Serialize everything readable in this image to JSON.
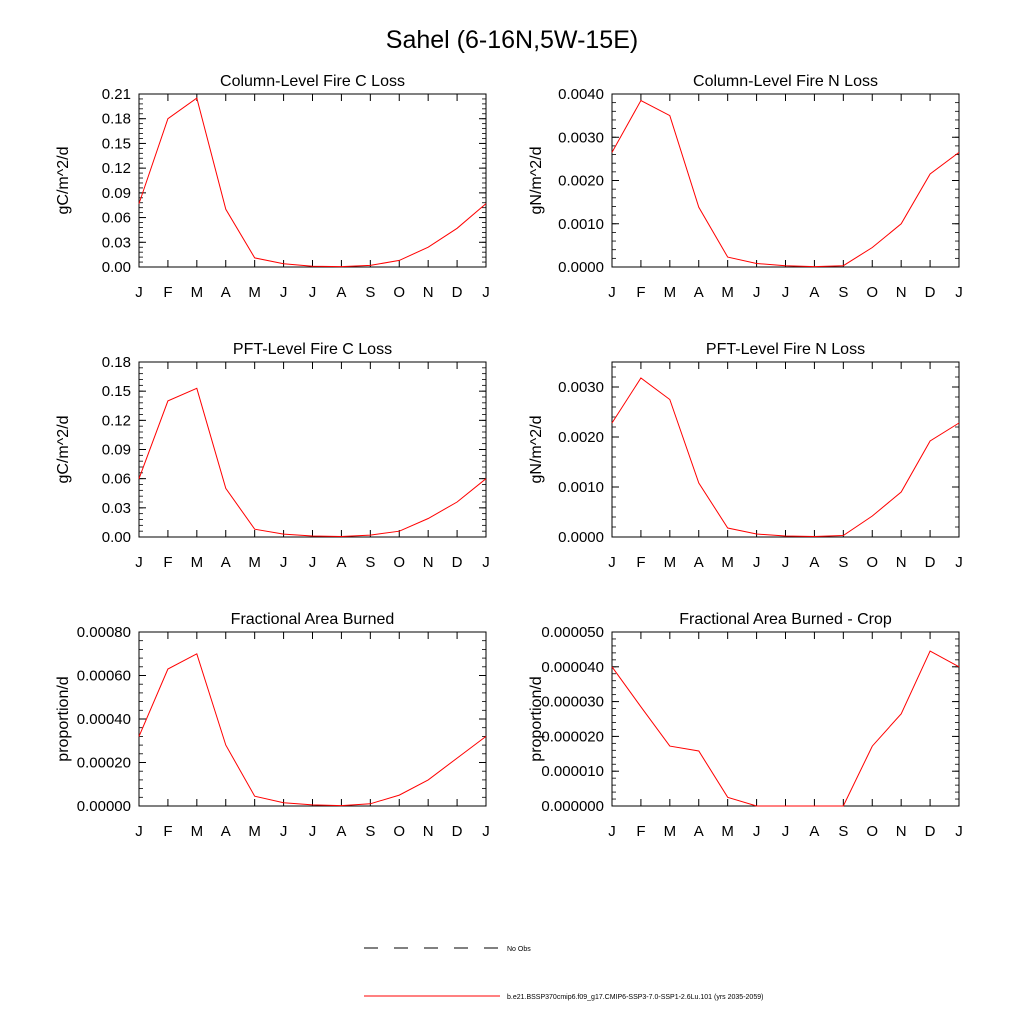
{
  "figure": {
    "title": "Sahel (6-16N,5W-15E)"
  },
  "colors": {
    "series": "#ff0000",
    "axis": "#000000",
    "legend_dash": "#000000"
  },
  "legend": {
    "entries": [
      {
        "label": "No Obs",
        "style": "dashed",
        "color": "#000000"
      },
      {
        "label": "b.e21.BSSP370cmip6.f09_g17.CMIP6-SSP3-7.0-SSP1-2.6Lu.101 (yrs 2035-2059)",
        "style": "solid",
        "color": "#ff0000"
      }
    ]
  },
  "chart_data": [
    {
      "type": "line",
      "title": "Column-Level Fire C Loss",
      "ylabel": "gC/m^2/d",
      "categories": [
        "J",
        "F",
        "M",
        "A",
        "M",
        "J",
        "J",
        "A",
        "S",
        "O",
        "N",
        "D",
        "J"
      ],
      "ylim": [
        0,
        0.21
      ],
      "yticks": [
        "0.00",
        "0.03",
        "0.06",
        "0.09",
        "0.12",
        "0.15",
        "0.18",
        "0.21"
      ],
      "series": [
        {
          "values": [
            0.077,
            0.18,
            0.205,
            0.07,
            0.011,
            0.004,
            0.001,
            0.0005,
            0.002,
            0.008,
            0.024,
            0.047,
            0.077
          ]
        }
      ]
    },
    {
      "type": "line",
      "title": "Column-Level Fire N Loss",
      "ylabel": "gN/m^2/d",
      "categories": [
        "J",
        "F",
        "M",
        "A",
        "M",
        "J",
        "J",
        "A",
        "S",
        "O",
        "N",
        "D",
        "J"
      ],
      "ylim": [
        0,
        0.004
      ],
      "yticks": [
        "0.0000",
        "0.0010",
        "0.0020",
        "0.0030",
        "0.0040"
      ],
      "series": [
        {
          "values": [
            0.00265,
            0.00385,
            0.0035,
            0.00138,
            0.00023,
            8e-05,
            3e-05,
            1e-05,
            3e-05,
            0.00045,
            0.001,
            0.00215,
            0.00265
          ]
        }
      ]
    },
    {
      "type": "line",
      "title": "PFT-Level Fire C Loss",
      "ylabel": "gC/m^2/d",
      "categories": [
        "J",
        "F",
        "M",
        "A",
        "M",
        "J",
        "J",
        "A",
        "S",
        "O",
        "N",
        "D",
        "J"
      ],
      "ylim": [
        0,
        0.18
      ],
      "yticks": [
        "0.00",
        "0.03",
        "0.06",
        "0.09",
        "0.12",
        "0.15",
        "0.18"
      ],
      "series": [
        {
          "values": [
            0.06,
            0.14,
            0.153,
            0.05,
            0.008,
            0.003,
            0.001,
            0.0005,
            0.002,
            0.006,
            0.019,
            0.036,
            0.06
          ]
        }
      ]
    },
    {
      "type": "line",
      "title": "PFT-Level Fire N Loss",
      "ylabel": "gN/m^2/d",
      "categories": [
        "J",
        "F",
        "M",
        "A",
        "M",
        "J",
        "J",
        "A",
        "S",
        "O",
        "N",
        "D",
        "J"
      ],
      "ylim": [
        0,
        0.0035
      ],
      "yticks": [
        "0.0000",
        "0.0010",
        "0.0020",
        "0.0030"
      ],
      "series": [
        {
          "values": [
            0.00228,
            0.00318,
            0.00275,
            0.00108,
            0.00018,
            6e-05,
            2e-05,
            1e-05,
            3e-05,
            0.00042,
            0.0009,
            0.00192,
            0.00228
          ]
        }
      ]
    },
    {
      "type": "line",
      "title": "Fractional Area Burned",
      "ylabel": "proportion/d",
      "categories": [
        "J",
        "F",
        "M",
        "A",
        "M",
        "J",
        "J",
        "A",
        "S",
        "O",
        "N",
        "D",
        "J"
      ],
      "ylim": [
        0,
        0.0008
      ],
      "yticks": [
        "0.00000",
        "0.00020",
        "0.00040",
        "0.00060",
        "0.00080"
      ],
      "series": [
        {
          "values": [
            0.00032,
            0.00063,
            0.0007,
            0.00028,
            4.5e-05,
            1.5e-05,
            5e-06,
            2e-06,
            1e-05,
            5e-05,
            0.00012,
            0.00022,
            0.00032
          ]
        }
      ]
    },
    {
      "type": "line",
      "title": "Fractional Area Burned - Crop",
      "ylabel": "proportion/d",
      "categories": [
        "J",
        "F",
        "M",
        "A",
        "M",
        "J",
        "J",
        "A",
        "S",
        "O",
        "N",
        "D",
        "J"
      ],
      "ylim": [
        0,
        5e-05
      ],
      "yticks": [
        "0.000000",
        "0.000010",
        "0.000020",
        "0.000030",
        "0.000040",
        "0.000050"
      ],
      "series": [
        {
          "values": [
            4e-05,
            2.85e-05,
            1.72e-05,
            1.58e-05,
            2.5e-06,
            0.0,
            0.0,
            0.0,
            0.0,
            1.72e-05,
            2.65e-05,
            4.45e-05,
            4e-05
          ]
        }
      ]
    }
  ]
}
